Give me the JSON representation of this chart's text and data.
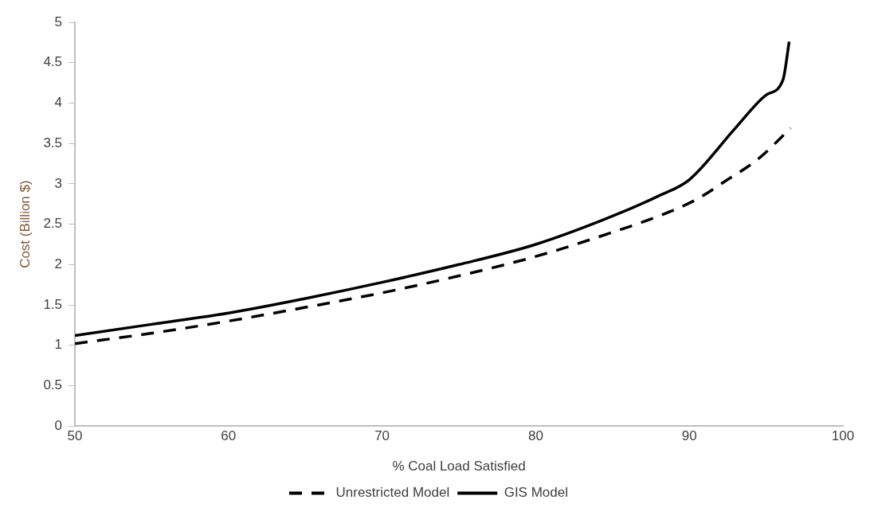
{
  "chart_data": {
    "type": "line",
    "xlabel": "% Coal Load Satisfied",
    "ylabel": "Cost (Billion $)",
    "xlim": [
      50,
      100
    ],
    "xticks": [
      50,
      60,
      70,
      80,
      90,
      100
    ],
    "ylim": [
      0,
      5
    ],
    "yticks": [
      0,
      0.5,
      1,
      1.5,
      2,
      2.5,
      3,
      3.5,
      4,
      4.5,
      5
    ],
    "grid": false,
    "legend": "bottom",
    "marker": "none",
    "series": [
      {
        "name": "Unrestricted Model",
        "color": "#000000",
        "line_style": "dashed",
        "x": [
          50,
          55,
          60,
          65,
          70,
          75,
          80,
          85,
          88,
          90.4,
          92.4,
          94.5,
          96.6
        ],
        "values": [
          1.02,
          1.15,
          1.3,
          1.47,
          1.65,
          1.86,
          2.1,
          2.4,
          2.6,
          2.8,
          3.04,
          3.31,
          3.69
        ]
      },
      {
        "name": "GIS Model",
        "color": "#000000",
        "line_style": "solid",
        "x": [
          50,
          55,
          60,
          65,
          70,
          75,
          80,
          85,
          88,
          90,
          93,
          95,
          96.1,
          96.5
        ],
        "values": [
          1.12,
          1.26,
          1.4,
          1.58,
          1.78,
          2.0,
          2.25,
          2.6,
          2.85,
          3.05,
          3.69,
          4.1,
          4.29,
          4.76
        ]
      }
    ]
  }
}
